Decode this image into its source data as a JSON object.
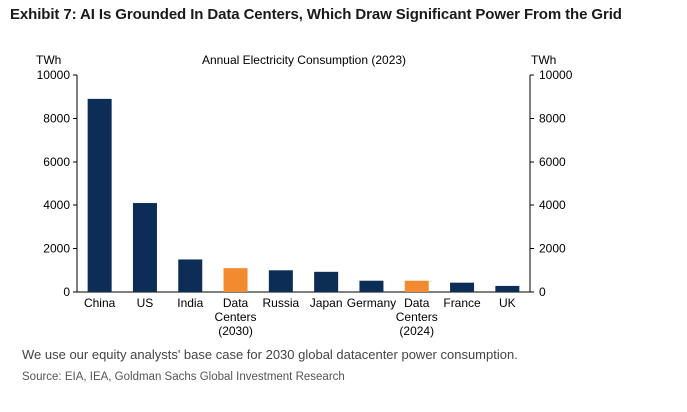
{
  "exhibit_title": "Exhibit 7: AI Is Grounded In Data Centers, Which Draw Significant Power From the Grid",
  "note": "We use our equity analysts' base case for 2030 global datacenter power consumption.",
  "source": "Source: EIA, IEA, Goldman Sachs Global Investment Research",
  "colors": {
    "primary": "#0b2d56",
    "highlight": "#f28a30"
  },
  "chart_data": {
    "type": "bar",
    "title": "Annual Electricity Consumption (2023)",
    "ylabel_left": "TWh",
    "ylabel_right": "TWh",
    "ylim": [
      0,
      10000
    ],
    "yticks": [
      0,
      2000,
      4000,
      6000,
      8000,
      10000
    ],
    "categories": [
      [
        "China"
      ],
      [
        "US"
      ],
      [
        "India"
      ],
      [
        "Data",
        "Centers",
        "(2030)"
      ],
      [
        "Russia"
      ],
      [
        "Japan"
      ],
      [
        "Germany"
      ],
      [
        "Data",
        "Centers",
        "(2024)"
      ],
      [
        "France"
      ],
      [
        "UK"
      ]
    ],
    "values": [
      8900,
      4100,
      1500,
      1100,
      1000,
      930,
      520,
      520,
      430,
      280
    ],
    "highlight": [
      false,
      false,
      false,
      true,
      false,
      false,
      false,
      true,
      false,
      false
    ]
  }
}
